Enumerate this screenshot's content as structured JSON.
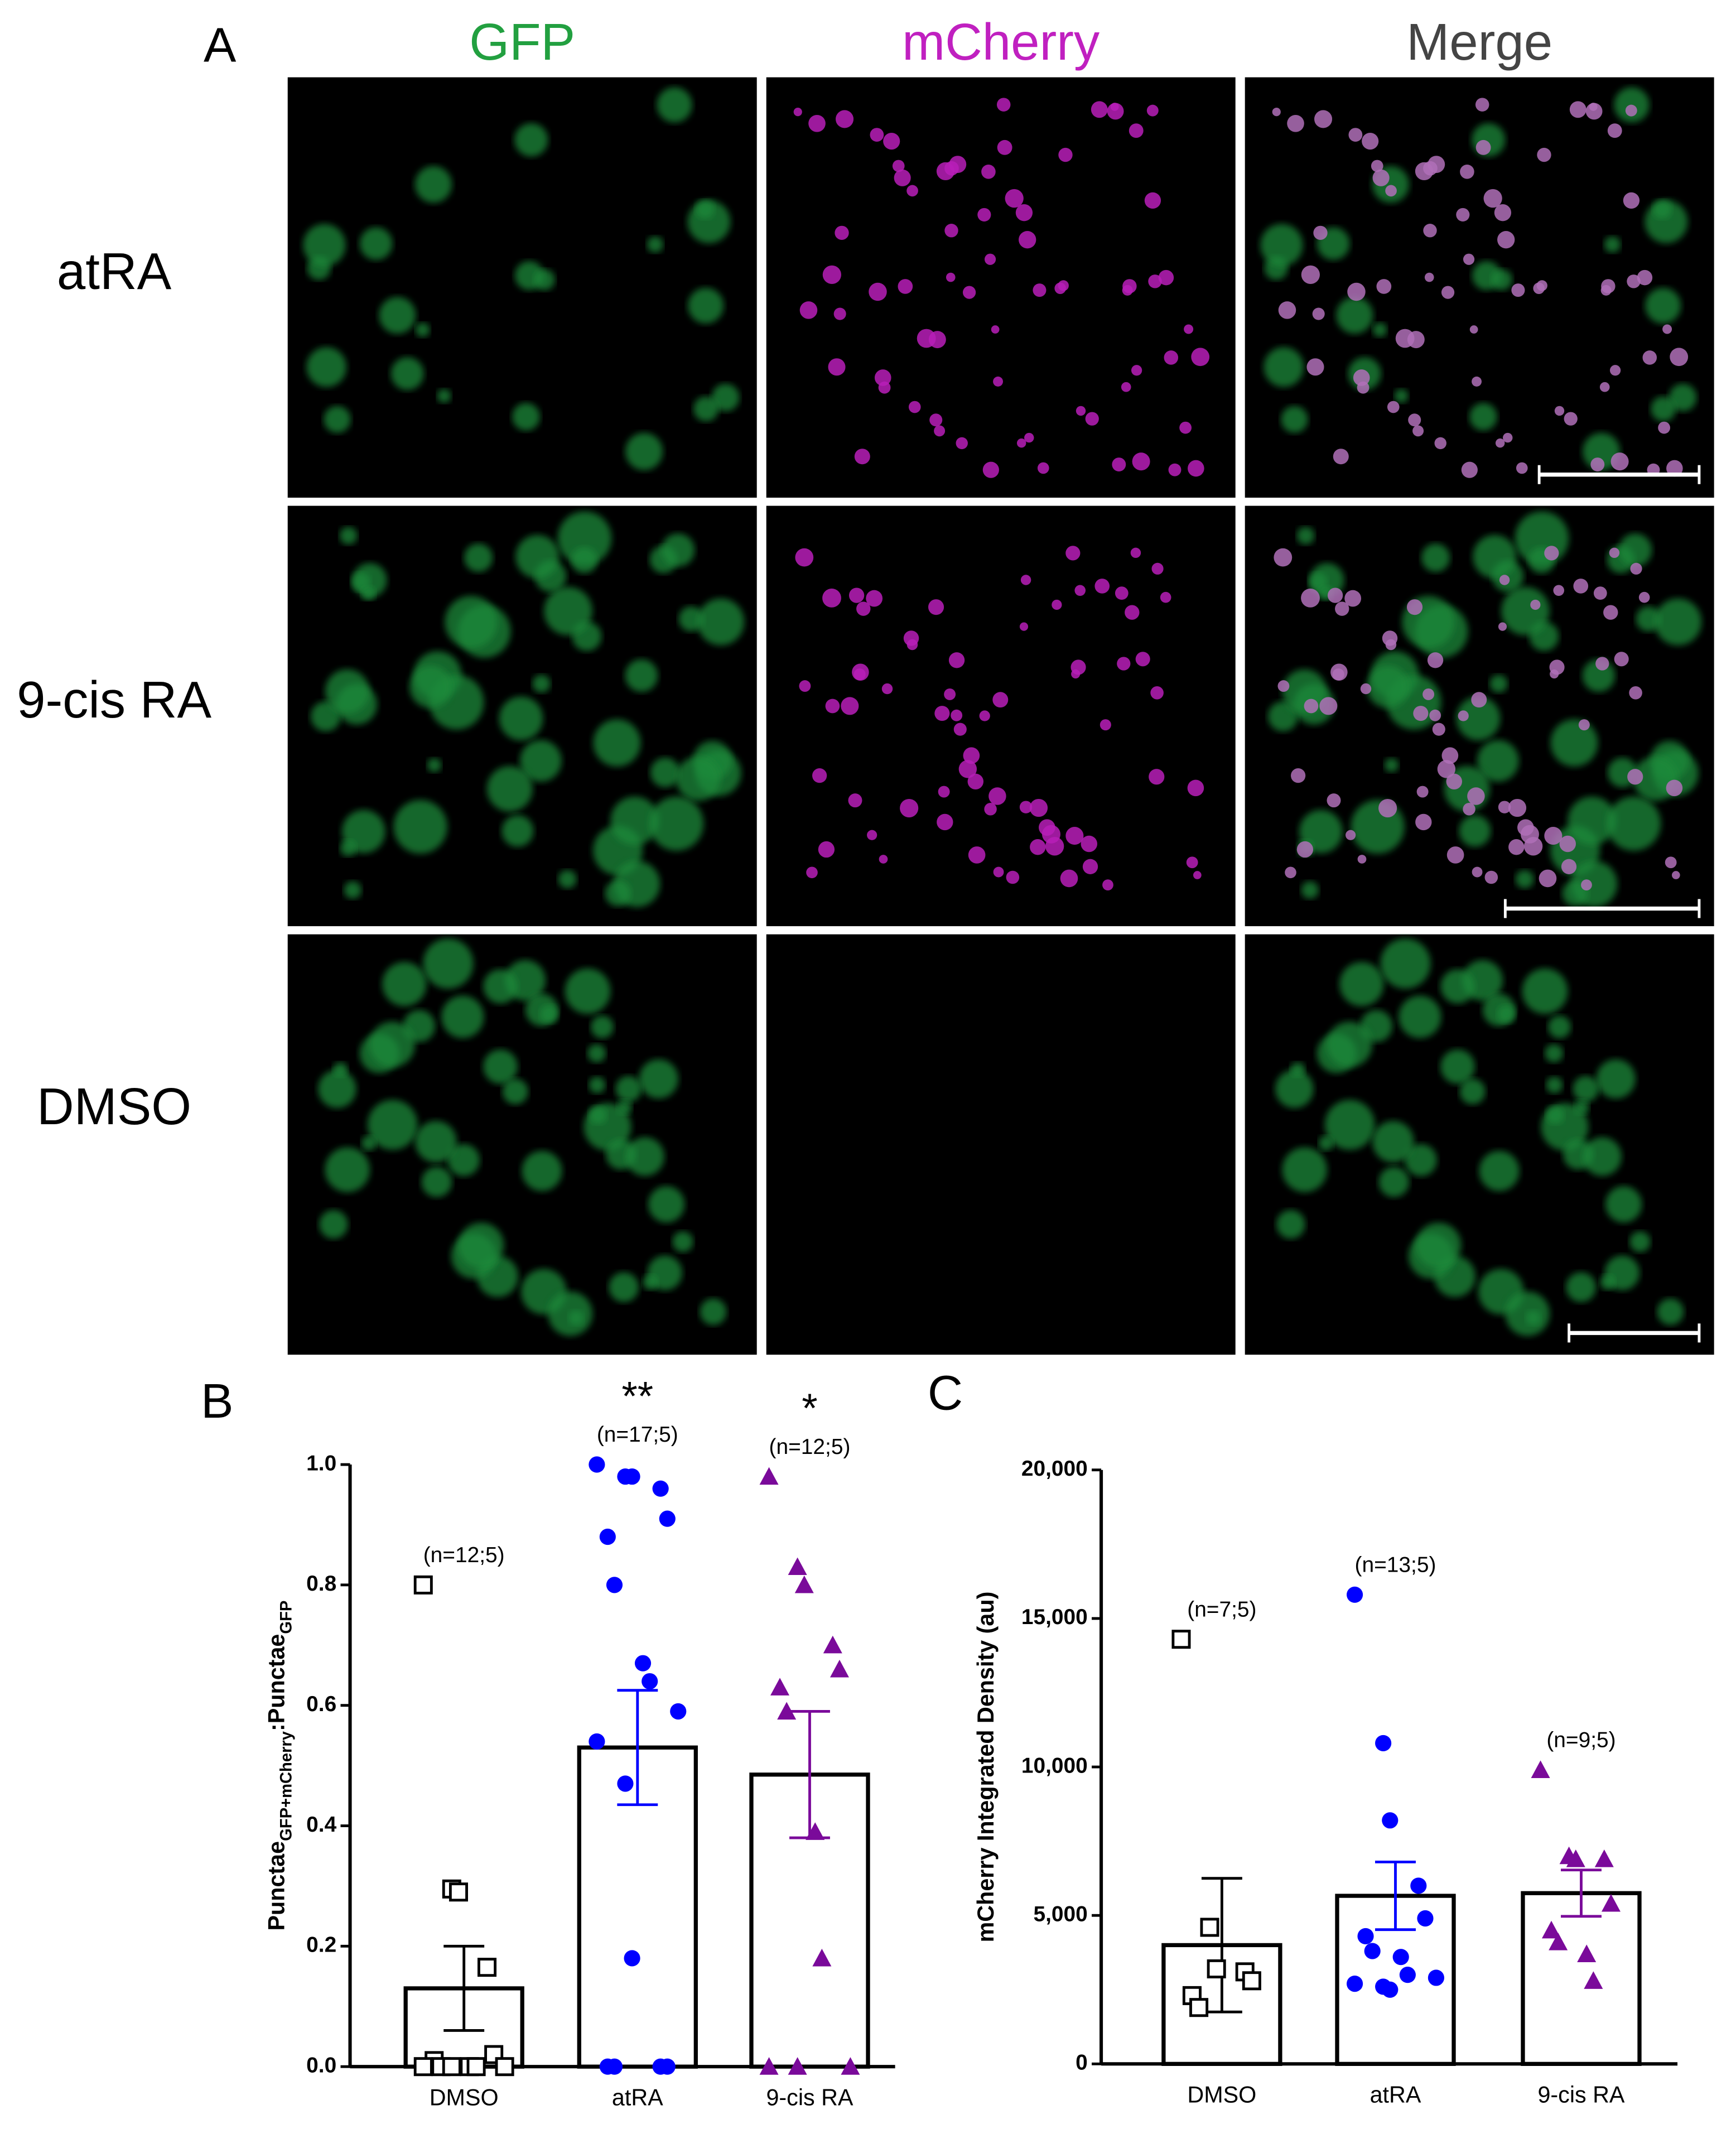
{
  "panel_a": {
    "label": "A",
    "columns": [
      "GFP",
      "mCherry",
      "Merge"
    ],
    "rows": [
      "atRA",
      "9-cis RA",
      "DMSO"
    ]
  },
  "chart_data": [
    {
      "type": "bar",
      "panel": "B",
      "ylabel": [
        "Punctae",
        "GFP+mCherry",
        ":Punctae",
        "GFP"
      ],
      "categories": [
        "DMSO",
        "atRA",
        "9-cis RA"
      ],
      "values": [
        0.13,
        0.53,
        0.485
      ],
      "errors": [
        0.07,
        0.095,
        0.105
      ],
      "points": [
        [
          0.8,
          0.295,
          0.29,
          0.165,
          0.02,
          0.01,
          0,
          0,
          0,
          0,
          0,
          0
        ],
        [
          1.0,
          0.98,
          0.98,
          0.96,
          0.91,
          0.88,
          0.8,
          0.67,
          0.64,
          0.59,
          0.54,
          0.47,
          0.18,
          0,
          0,
          0,
          0
        ],
        [
          0.98,
          0.83,
          0.8,
          0.7,
          0.66,
          0.63,
          0.59,
          0.39,
          0.18,
          0,
          0,
          0
        ]
      ],
      "colors": [
        "#000000",
        "#0000ff",
        "#7a0a9a"
      ],
      "markers": [
        "open-square",
        "circle",
        "triangle"
      ],
      "n_labels": [
        "(n=12;5)",
        "(n=17;5)",
        "(n=12;5)"
      ],
      "significance": [
        {
          "category": "atRA",
          "text": "**"
        },
        {
          "category": "9-cis RA",
          "text": "*"
        }
      ],
      "ylim": [
        0,
        1.0
      ],
      "yticks": [
        {
          "value": 0,
          "label": "0.0"
        },
        0.2,
        0.4,
        0.6,
        0.8,
        {
          "value": 1.0,
          "label": "1.0"
        }
      ]
    },
    {
      "type": "bar",
      "panel": "C",
      "ylabel": [
        "mCherry Integrated Density (au)"
      ],
      "categories": [
        "DMSO",
        "atRA",
        "9-cis RA"
      ],
      "values": [
        4000,
        5660,
        5750
      ],
      "errors": [
        2250,
        1140,
        780
      ],
      "points": [
        [
          14300,
          4600,
          3200,
          3100,
          2800,
          2300,
          1900
        ],
        [
          15800,
          10800,
          8200,
          6000,
          4900,
          4300,
          3800,
          3600,
          3000,
          2900,
          2700,
          2600,
          2500
        ],
        [
          9900,
          7000,
          6900,
          6900,
          5400,
          4500,
          4100,
          3700,
          2800
        ]
      ],
      "colors": [
        "#000000",
        "#0000ff",
        "#7a0a9a"
      ],
      "markers": [
        "open-square",
        "circle",
        "triangle"
      ],
      "n_labels": [
        "(n=7;5)",
        "(n=13;5)",
        "(n=9;5)"
      ],
      "ylim": [
        0,
        20000
      ],
      "yticks": [
        0,
        {
          "value": 5000,
          "label": "5,000"
        },
        {
          "value": 10000,
          "label": "10,000"
        },
        {
          "value": 15000,
          "label": "15,000"
        },
        {
          "value": 20000,
          "label": "20,000"
        }
      ]
    }
  ]
}
